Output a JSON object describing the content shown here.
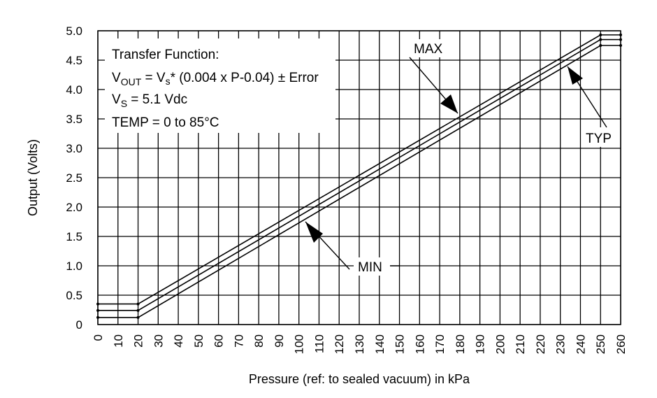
{
  "chart_data": {
    "type": "line",
    "xlabel": "Pressure (ref: to sealed vacuum) in kPa",
    "ylabel": "Output (Volts)",
    "xlim": [
      0,
      260
    ],
    "ylim": [
      0,
      5.0
    ],
    "x_ticks": [
      "0",
      "10",
      "20",
      "30",
      "40",
      "50",
      "60",
      "70",
      "80",
      "90",
      "100",
      "110",
      "120",
      "130",
      "140",
      "150",
      "160",
      "170",
      "180",
      "190",
      "200",
      "210",
      "220",
      "230",
      "240",
      "250",
      "260"
    ],
    "y_ticks": [
      "0",
      "0.5",
      "1.0",
      "1.5",
      "2.0",
      "2.5",
      "3.0",
      "3.5",
      "4.0",
      "4.5",
      "5.0"
    ],
    "grid": true,
    "series": [
      {
        "name": "MAX",
        "x": [
          0,
          20,
          250,
          260
        ],
        "y": [
          0.35,
          0.35,
          4.93,
          4.93
        ]
      },
      {
        "name": "TYP",
        "x": [
          0,
          20,
          250,
          260
        ],
        "y": [
          0.24,
          0.24,
          4.85,
          4.85
        ]
      },
      {
        "name": "MIN",
        "x": [
          0,
          20,
          250,
          260
        ],
        "y": [
          0.12,
          0.12,
          4.75,
          4.75
        ]
      }
    ],
    "annotation": {
      "line1": "Transfer Function:",
      "vout_main": "V",
      "vout_sub": "OUT",
      "eq_mid": " = V",
      "eq_sub": "s",
      "eq_rest": "* (0.004 x P-0.04) ± Error",
      "vs_main": "V",
      "vs_sub": "S",
      "vs_rest": " = 5.1 Vdc",
      "temp": "TEMP = 0 to 85°C"
    },
    "labels": {
      "max": "MAX",
      "typ": "TYP",
      "min": "MIN"
    }
  }
}
